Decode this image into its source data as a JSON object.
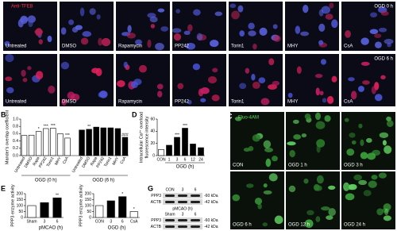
{
  "panel_a": {
    "letter": "A",
    "stain": "Anti-TFEB",
    "rows": [
      {
        "condition": "OGD 0 h",
        "labels": [
          "Untreated",
          "DMSO",
          "Rapamycin",
          "PP242",
          "Torin1",
          "MHY",
          "CsA"
        ]
      },
      {
        "condition": "OGD 6 h",
        "labels": [
          "Untreated",
          "DMSO",
          "Rapamycin",
          "PP242",
          "Torin1",
          "MHY",
          "CsA"
        ]
      }
    ]
  },
  "panel_b": {
    "letter": "B",
    "y_label": "Mander's overlap coefficient",
    "ylim": [
      0,
      1
    ],
    "yticks": [
      {
        "value": 0,
        "label": "0.0"
      },
      0.2,
      0.4,
      0.6,
      0.8,
      {
        "value": 1,
        "label": "1.0"
      }
    ],
    "groups": [
      {
        "name": "OGD (0 h)",
        "color": "#ffffff",
        "categories": [
          "Untreated",
          "DMSO",
          "Rapa",
          "PP242",
          "Torin1",
          "MHY",
          "CsA"
        ],
        "values": [
          0.55,
          0.56,
          0.66,
          0.74,
          0.75,
          0.6,
          0.48
        ],
        "annotations": [
          null,
          null,
          "*",
          "***",
          "***",
          null,
          "***"
        ]
      },
      {
        "name": "OGD (6 h)",
        "color": "#000000",
        "categories": [
          "Untreated",
          "DMSO",
          "Rapa",
          "PP242",
          "Torin1",
          "MHY",
          "CsA"
        ],
        "values": [
          0.7,
          0.72,
          0.78,
          0.76,
          0.76,
          0.74,
          0.5
        ],
        "annotations": [
          null,
          "**",
          null,
          null,
          null,
          null,
          "###"
        ]
      }
    ]
  },
  "panel_d": {
    "letter": "D",
    "y_label": [
      "Intracellular Ca²⁺ overload",
      "fluorescence intensity"
    ],
    "x_label": "OGD (h)",
    "ylim": [
      0,
      60
    ],
    "yticks": [
      0,
      20,
      40,
      60
    ],
    "categories": [
      "CON",
      "1",
      "3",
      "6",
      "12",
      "24"
    ],
    "values": [
      10,
      17,
      30,
      45,
      19,
      13
    ],
    "colors": [
      "#ffffff",
      "#000000",
      "#000000",
      "#000000",
      "#000000",
      "#000000"
    ],
    "annotations": [
      null,
      null,
      "***",
      "***",
      null,
      null
    ]
  },
  "panel_c": {
    "letter": "C",
    "stain": "Fluo-4AM",
    "labels": [
      "CON",
      "OGD 1 h",
      "OGD 3 h",
      "OGD 6 h",
      "OGD 12 h",
      "OGD 24 h"
    ]
  },
  "panel_e": {
    "letter": "E",
    "charts": [
      {
        "y_label": "PPP3 enzyme activity",
        "x_label": "pMCAO (h)",
        "ylim": [
          0,
          200
        ],
        "yticks": [
          0,
          50,
          100,
          150,
          200
        ],
        "categories": [
          "Sham",
          "3",
          "6"
        ],
        "values": [
          100,
          125,
          165
        ],
        "colors": [
          "#ffffff",
          "#000000",
          "#000000"
        ],
        "annotations": [
          null,
          null,
          "**"
        ]
      },
      {
        "y_label": "PPP3 enzyme activity",
        "x_label": "OGD (h)",
        "ylim": [
          0,
          200
        ],
        "yticks": [
          0,
          50,
          100,
          150,
          200
        ],
        "categories": [
          "CON",
          "3",
          "6",
          "CsA"
        ],
        "values": [
          100,
          140,
          175,
          50
        ],
        "colors": [
          "#ffffff",
          "#000000",
          "#000000",
          "#ffffff"
        ],
        "annotations": [
          null,
          null,
          "*",
          "*"
        ]
      }
    ]
  },
  "panel_g": {
    "letter": "G",
    "blots": [
      {
        "categories": [
          "CON",
          "3",
          "6"
        ],
        "rows": [
          {
            "protein": "PPP3",
            "size": "-60 kDa"
          },
          {
            "protein": "ACTB",
            "size": "-42 kDa"
          }
        ]
      },
      {
        "condition": "pMCAO (h)",
        "categories": [
          "Sham",
          "3",
          "6"
        ],
        "rows": [
          {
            "protein": "PPP3",
            "size": "-60 kDa"
          },
          {
            "protein": "ACTB",
            "size": "-42 kDa"
          }
        ]
      }
    ]
  }
}
